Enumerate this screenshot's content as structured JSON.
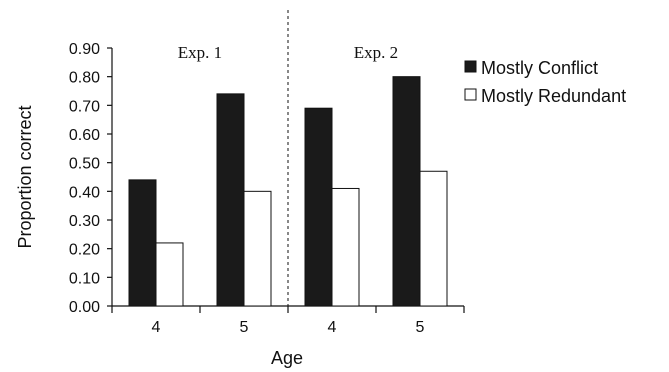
{
  "chart_data": {
    "type": "bar",
    "ylabel": "Proportion correct",
    "xlabel": "Age",
    "ylim": [
      0,
      0.9
    ],
    "yticks": [
      "0.00",
      "0.10",
      "0.20",
      "0.30",
      "0.40",
      "0.50",
      "0.60",
      "0.70",
      "0.80",
      "0.90"
    ],
    "categories": [
      "4",
      "5",
      "4",
      "5"
    ],
    "groups": [
      {
        "label": "Exp. 1",
        "category_indices": [
          0,
          1
        ]
      },
      {
        "label": "Exp. 2",
        "category_indices": [
          2,
          3
        ]
      }
    ],
    "series": [
      {
        "name": "Mostly Conflict",
        "color": "#1a1a1a",
        "values": [
          0.44,
          0.74,
          0.69,
          0.8
        ]
      },
      {
        "name": "Mostly Redundant",
        "color": "#ffffff",
        "values": [
          0.22,
          0.4,
          0.41,
          0.47
        ]
      }
    ],
    "legend_position": "right",
    "grid": false,
    "group_divider": "dashed"
  }
}
